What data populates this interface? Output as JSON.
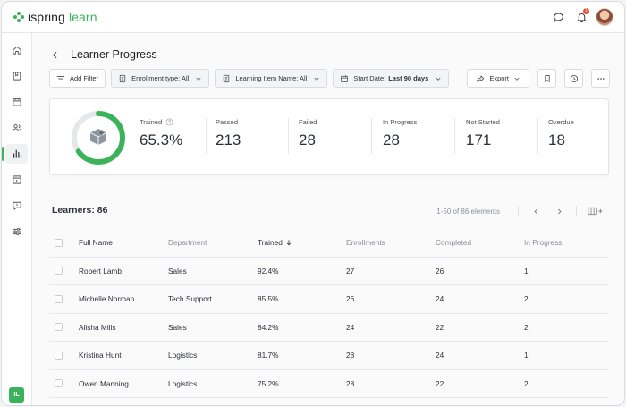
{
  "app": {
    "logo_prefix": "ispring",
    "logo_suffix": "learn",
    "notification_count": "1",
    "user_initials": "IL"
  },
  "colors": {
    "accent": "#3cb35a",
    "notification": "#ef4a3c"
  },
  "sidebar": {
    "items": [
      {
        "icon": "home-icon"
      },
      {
        "icon": "book-icon"
      },
      {
        "icon": "calendar-icon"
      },
      {
        "icon": "users-icon"
      },
      {
        "icon": "reports-icon",
        "active": true
      },
      {
        "icon": "catalog-icon"
      },
      {
        "icon": "help-icon"
      },
      {
        "icon": "settings-icon"
      }
    ]
  },
  "page": {
    "title": "Learner Progress"
  },
  "filters": {
    "add_filter": "Add Filter",
    "enrollment_type": "Enrollment type: All",
    "learning_item": "Learning Item Name: All",
    "start_date_prefix": "Start Date:",
    "start_date_value": "Last 90 days"
  },
  "toolbar": {
    "export": "Export"
  },
  "stats": {
    "trained": {
      "label": "Trained",
      "value": "65.3%",
      "fraction": 0.653
    },
    "passed": {
      "label": "Passed",
      "value": "213"
    },
    "failed": {
      "label": "Failed",
      "value": "28"
    },
    "in_progress": {
      "label": "In Progress",
      "value": "28"
    },
    "not_started": {
      "label": "Not Started",
      "value": "171"
    },
    "overdue": {
      "label": "Overdue",
      "value": "18"
    }
  },
  "learners": {
    "title": "Learners: 86",
    "range": "1-50 of 86 elements"
  },
  "table": {
    "columns": [
      "Full Name",
      "Department",
      "Trained",
      "Enrollments",
      "Completed",
      "In Progress"
    ],
    "rows": [
      [
        "Robert Lamb",
        "Sales",
        "92.4%",
        "27",
        "26",
        "1"
      ],
      [
        "Michelle Norman",
        "Tech Support",
        "85.5%",
        "26",
        "24",
        "2"
      ],
      [
        "Alisha Mills",
        "Sales",
        "84.2%",
        "24",
        "22",
        "2"
      ],
      [
        "Kristina Hunt",
        "Logistics",
        "81.7%",
        "28",
        "24",
        "1"
      ],
      [
        "Owen Manning",
        "Logistics",
        "75.2%",
        "28",
        "22",
        "2"
      ]
    ]
  }
}
